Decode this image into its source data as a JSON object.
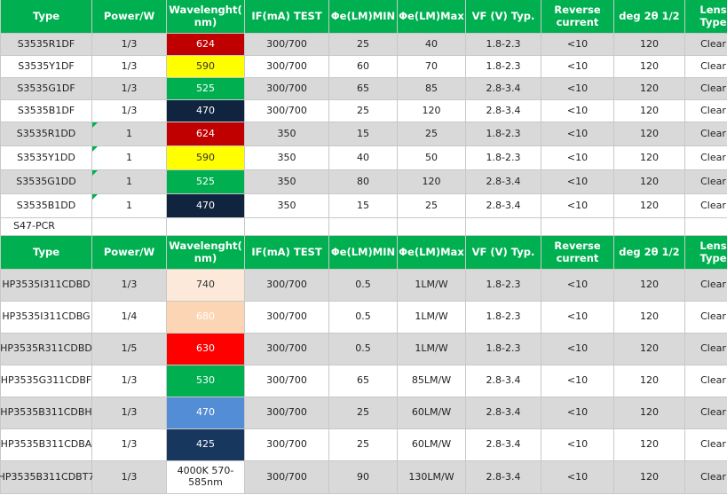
{
  "table1": {
    "headers": [
      "Type",
      "Power/W",
      "Wavelenght( nm)",
      "IF(mA) TEST",
      "Φe(LM)MIN",
      "Φe(LM)Max",
      "VF (V) Typ.",
      "Reverse current",
      "deg 2θ 1/2",
      "Lens Type"
    ],
    "rows": [
      {
        "type": "S3535R1DF",
        "power": "1/3",
        "wl": "624",
        "if": "300/700",
        "min": "25",
        "max": "40",
        "vf": "1.8-2.3",
        "rev": "<10",
        "deg": "120",
        "lens": "Clear"
      },
      {
        "type": "S3535Y1DF",
        "power": "1/3",
        "wl": "590",
        "if": "300/700",
        "min": "60",
        "max": "70",
        "vf": "1.8-2.3",
        "rev": "<10",
        "deg": "120",
        "lens": "Clear"
      },
      {
        "type": "S3535G1DF",
        "power": "1/3",
        "wl": "525",
        "if": "300/700",
        "min": "65",
        "max": "85",
        "vf": "2.8-3.4",
        "rev": "<10",
        "deg": "120",
        "lens": "Clear"
      },
      {
        "type": "S3535B1DF",
        "power": "1/3",
        "wl": "470",
        "if": "300/700",
        "min": "25",
        "max": "120",
        "vf": "2.8-3.4",
        "rev": "<10",
        "deg": "120",
        "lens": "Clear"
      },
      {
        "type": "S3535R1DD",
        "power": "1",
        "wl": "624",
        "if": "350",
        "min": "15",
        "max": "25",
        "vf": "1.8-2.3",
        "rev": "<10",
        "deg": "120",
        "lens": "Clear"
      },
      {
        "type": "S3535Y1DD",
        "power": "1",
        "wl": "590",
        "if": "350",
        "min": "40",
        "max": "50",
        "vf": "1.8-2.3",
        "rev": "<10",
        "deg": "120",
        "lens": "Clear"
      },
      {
        "type": "S3535G1DD",
        "power": "1",
        "wl": "525",
        "if": "350",
        "min": "80",
        "max": "120",
        "vf": "2.8-3.4",
        "rev": "<10",
        "deg": "120",
        "lens": "Clear"
      },
      {
        "type": "S3535B1DD",
        "power": "1",
        "wl": "470",
        "if": "350",
        "min": "15",
        "max": "25",
        "vf": "2.8-3.4",
        "rev": "<10",
        "deg": "120",
        "lens": "Clear"
      }
    ]
  },
  "separator_label": "S47-PCR",
  "table2": {
    "headers": [
      "Type",
      "Power/W",
      "Wavelenght( nm)",
      "IF(mA) TEST",
      "Φe(LM)MIN",
      "Φe(LM)Max",
      "VF (V) Typ.",
      "Reverse current",
      "deg 2θ 1/2",
      "Lens Type"
    ],
    "rows": [
      {
        "type": "HP3535I311CDBD",
        "power": "1/3",
        "wl": "740",
        "if": "300/700",
        "min": "0.5",
        "max": "1LM/W",
        "vf": "1.8-2.3",
        "rev": "<10",
        "deg": "120",
        "lens": "Clear"
      },
      {
        "type": "HP3535I311CDBG",
        "power": "1/4",
        "wl": "680",
        "if": "300/700",
        "min": "0.5",
        "max": "1LM/W",
        "vf": "1.8-2.3",
        "rev": "<10",
        "deg": "120",
        "lens": "Clear"
      },
      {
        "type": "HP3535R311CDBD",
        "power": "1/5",
        "wl": "630",
        "if": "300/700",
        "min": "0.5",
        "max": "1LM/W",
        "vf": "1.8-2.3",
        "rev": "<10",
        "deg": "120",
        "lens": "Clear"
      },
      {
        "type": "HP3535G311CDBF",
        "power": "1/3",
        "wl": "530",
        "if": "300/700",
        "min": "65",
        "max": "85LM/W",
        "vf": "2.8-3.4",
        "rev": "<10",
        "deg": "120",
        "lens": "Clear"
      },
      {
        "type": "HP3535B311CDBH",
        "power": "1/3",
        "wl": "470",
        "if": "300/700",
        "min": "25",
        "max": "60LM/W",
        "vf": "2.8-3.4",
        "rev": "<10",
        "deg": "120",
        "lens": "Clear"
      },
      {
        "type": "HP3535B311CDBA",
        "power": "1/3",
        "wl": "425",
        "if": "300/700",
        "min": "25",
        "max": "60LM/W",
        "vf": "2.8-3.4",
        "rev": "<10",
        "deg": "120",
        "lens": "Clear"
      },
      {
        "type": "HP3535B311CDBT7",
        "power": "1/3",
        "wl": "4000K 570-585nm",
        "if": "300/700",
        "min": "90",
        "max": "130LM/W",
        "vf": "2.8-3.4",
        "rev": "<10",
        "deg": "120",
        "lens": "Clear"
      }
    ]
  },
  "colors": {
    "header_green": "#00b050",
    "row_gray": "#d9d9d9",
    "red_624": "#c00000",
    "yellow_590": "#ffff00",
    "green_525": "#00b050",
    "navy_470": "#10243f",
    "peach_740": "#fde9d9",
    "peach_680": "#fcd5b4",
    "red_630": "#ff0000",
    "blue_470": "#538dd5",
    "navy_425": "#17375e"
  }
}
